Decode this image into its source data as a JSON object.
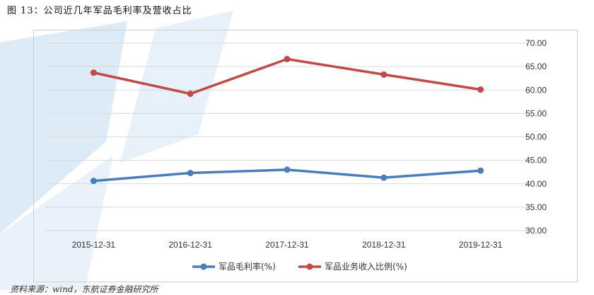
{
  "figure": {
    "title": "图  13：公司近几年军品毛利率及营收占比"
  },
  "source": {
    "text": "资料来源：wind，东航证券金融研究所"
  },
  "colors": {
    "series_1": "#4a7ebb",
    "series_2": "#be4b48",
    "grid": "#d9d9d9",
    "watermark": "#d7e8f5"
  },
  "chart_data": {
    "type": "line",
    "title": "",
    "xlabel": "",
    "ylabel": "",
    "categories": [
      "2015-12-31",
      "2016-12-31",
      "2017-12-31",
      "2018-12-31",
      "2019-12-31"
    ],
    "ylim": [
      30,
      70
    ],
    "yticks": [
      "30.00",
      "35.00",
      "40.00",
      "45.00",
      "50.00",
      "55.00",
      "60.00",
      "65.00",
      "70.00"
    ],
    "y_axis_side": "right",
    "grid": true,
    "legend_position": "bottom",
    "series": [
      {
        "name": "军品毛利率(%)",
        "values": [
          40.6,
          42.3,
          43.0,
          41.3,
          42.8
        ],
        "color": "#4a7ebb"
      },
      {
        "name": "军品业务收入比例(%)",
        "values": [
          63.7,
          59.2,
          66.6,
          63.3,
          60.1
        ],
        "color": "#be4b48"
      }
    ]
  }
}
